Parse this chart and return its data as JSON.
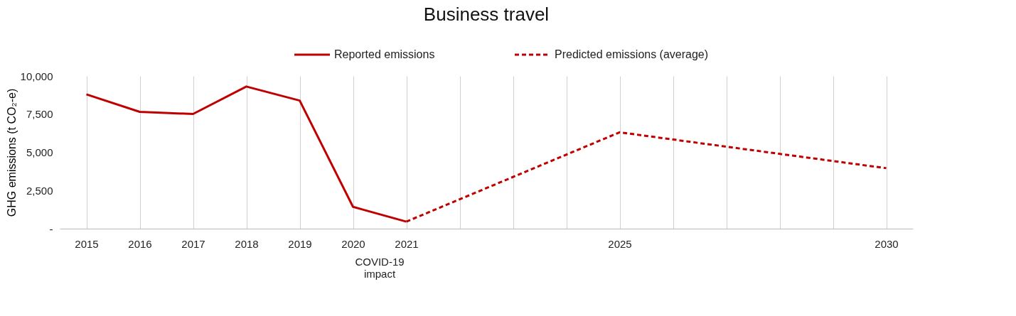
{
  "chart_data": {
    "type": "line",
    "title": "Business travel",
    "ylabel": "GHG emissions (t CO₂-e)",
    "series": [
      {
        "name": "Reported emissions",
        "color": "#c00000",
        "line_style": "solid",
        "x": [
          2015,
          2016,
          2017,
          2018,
          2019,
          2020,
          2021
        ],
        "values": [
          8800,
          7650,
          7510,
          9310,
          8390,
          1430,
          460
        ]
      },
      {
        "name": "Predicted emissions (average)",
        "color": "#c00000",
        "line_style": "dashed",
        "x": [
          2021,
          2025,
          2030
        ],
        "values": [
          460,
          6310,
          3960
        ]
      }
    ],
    "xlim": [
      2014.5,
      2030.5
    ],
    "xticks": [
      2015,
      2016,
      2017,
      2018,
      2019,
      2020,
      2021,
      {
        "value": 2022,
        "label": null
      },
      {
        "value": 2023,
        "label": null
      },
      {
        "value": 2024,
        "label": null
      },
      2025,
      {
        "value": 2026,
        "label": null
      },
      {
        "value": 2027,
        "label": null
      },
      {
        "value": 2028,
        "label": null
      },
      {
        "value": 2029,
        "label": null
      },
      2030
    ],
    "ylim": [
      0,
      10000
    ],
    "yticks": [
      {
        "value": 0,
        "label": "-"
      },
      {
        "value": 2500,
        "label": "2,500"
      },
      {
        "value": 5000,
        "label": "5,000"
      },
      {
        "value": 7500,
        "label": "7,500"
      },
      {
        "value": 10000,
        "label": "10,000"
      }
    ],
    "grid": "x",
    "legend": "top",
    "marker": "none",
    "annotations": [
      "COVID-19 impact"
    ]
  }
}
